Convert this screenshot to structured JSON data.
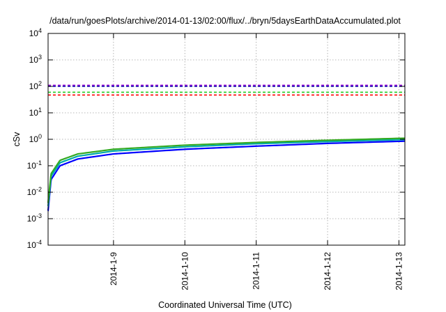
{
  "chart_data": {
    "type": "line",
    "title": "/data/run/goesPlots/archive/2014-01-13/02:00/flux/../bryn/5daysEarthDataAccumulated.plot",
    "xlabel": "Coordinated Universal Time (UTC)",
    "ylabel": "cSv",
    "y_scale": "log",
    "ylim": [
      0.0001,
      10000
    ],
    "y_ticks": [
      {
        "value": 0.0001,
        "base": "10",
        "exp": "-4"
      },
      {
        "value": 0.001,
        "base": "10",
        "exp": "-3"
      },
      {
        "value": 0.01,
        "base": "10",
        "exp": "-2"
      },
      {
        "value": 0.1,
        "base": "10",
        "exp": "-1"
      },
      {
        "value": 1,
        "base": "10",
        "exp": "0"
      },
      {
        "value": 10,
        "base": "10",
        "exp": "1"
      },
      {
        "value": 100,
        "base": "10",
        "exp": "2"
      },
      {
        "value": 1000,
        "base": "10",
        "exp": "3"
      },
      {
        "value": 10000,
        "base": "10",
        "exp": "4"
      }
    ],
    "xlim": [
      "2014-01-08T02:00",
      "2014-01-13T02:00"
    ],
    "x_ticks": [
      {
        "value": "2014-01-09T00:00",
        "label": "2014-1-9"
      },
      {
        "value": "2014-01-10T00:00",
        "label": "2014-1-10"
      },
      {
        "value": "2014-01-11T00:00",
        "label": "2014-1-11"
      },
      {
        "value": "2014-01-12T00:00",
        "label": "2014-1-12"
      },
      {
        "value": "2014-01-13T00:00",
        "label": "2014-1-13"
      }
    ],
    "grid": true,
    "legend": "none",
    "series": [
      {
        "color": "#0000ff",
        "style": "solid",
        "points": [
          {
            "x": "2014-01-08T02:00",
            "y": 0.002
          },
          {
            "x": "2014-01-08T03:00",
            "y": 0.03
          },
          {
            "x": "2014-01-08T06:00",
            "y": 0.1
          },
          {
            "x": "2014-01-08T12:00",
            "y": 0.18
          },
          {
            "x": "2014-01-09T00:00",
            "y": 0.28
          },
          {
            "x": "2014-01-10T00:00",
            "y": 0.42
          },
          {
            "x": "2014-01-11T00:00",
            "y": 0.55
          },
          {
            "x": "2014-01-12T00:00",
            "y": 0.7
          },
          {
            "x": "2014-01-13T02:00",
            "y": 0.85
          }
        ]
      },
      {
        "color": "#00aaaa",
        "style": "solid",
        "points": [
          {
            "x": "2014-01-08T02:00",
            "y": 0.003
          },
          {
            "x": "2014-01-08T03:00",
            "y": 0.04
          },
          {
            "x": "2014-01-08T06:00",
            "y": 0.13
          },
          {
            "x": "2014-01-08T12:00",
            "y": 0.23
          },
          {
            "x": "2014-01-09T00:00",
            "y": 0.36
          },
          {
            "x": "2014-01-10T00:00",
            "y": 0.52
          },
          {
            "x": "2014-01-11T00:00",
            "y": 0.68
          },
          {
            "x": "2014-01-12T00:00",
            "y": 0.82
          },
          {
            "x": "2014-01-13T02:00",
            "y": 0.98
          }
        ]
      },
      {
        "color": "#33aa22",
        "style": "solid",
        "points": [
          {
            "x": "2014-01-08T02:00",
            "y": 0.004
          },
          {
            "x": "2014-01-08T03:00",
            "y": 0.05
          },
          {
            "x": "2014-01-08T06:00",
            "y": 0.16
          },
          {
            "x": "2014-01-08T12:00",
            "y": 0.28
          },
          {
            "x": "2014-01-09T00:00",
            "y": 0.42
          },
          {
            "x": "2014-01-10T00:00",
            "y": 0.6
          },
          {
            "x": "2014-01-11T00:00",
            "y": 0.76
          },
          {
            "x": "2014-01-12T00:00",
            "y": 0.92
          },
          {
            "x": "2014-01-13T02:00",
            "y": 1.1
          }
        ]
      },
      {
        "color": "#9400d3",
        "style": "dashed",
        "points": [
          {
            "x": "2014-01-08T02:00",
            "y": 110
          },
          {
            "x": "2014-01-13T02:00",
            "y": 110
          }
        ]
      },
      {
        "color": "#0000aa",
        "style": "dashed",
        "points": [
          {
            "x": "2014-01-08T02:00",
            "y": 100
          },
          {
            "x": "2014-01-13T02:00",
            "y": 100
          }
        ]
      },
      {
        "color": "#22cc22",
        "style": "dashed",
        "points": [
          {
            "x": "2014-01-08T02:00",
            "y": 60
          },
          {
            "x": "2014-01-13T02:00",
            "y": 60
          }
        ]
      },
      {
        "color": "#ff0000",
        "style": "dashed",
        "points": [
          {
            "x": "2014-01-08T02:00",
            "y": 47
          },
          {
            "x": "2014-01-13T02:00",
            "y": 47
          }
        ]
      }
    ]
  }
}
